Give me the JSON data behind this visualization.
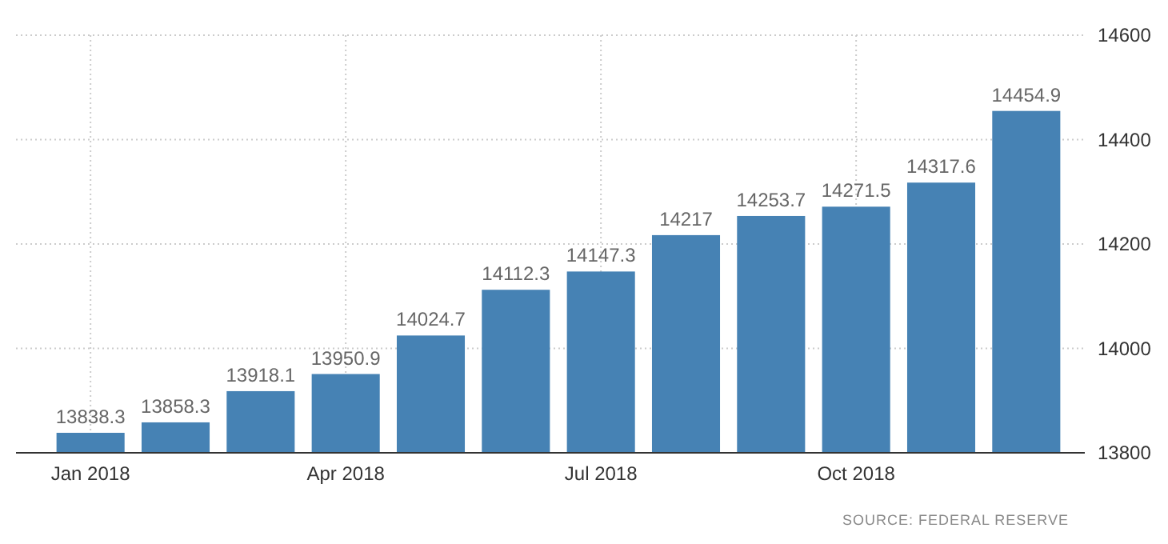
{
  "chart_data": {
    "type": "bar",
    "categories": [
      "Jan 2018",
      null,
      null,
      "Apr 2018",
      null,
      null,
      "Jul 2018",
      null,
      null,
      "Oct 2018",
      null,
      null
    ],
    "values": [
      13838.3,
      13858.3,
      13918.1,
      13950.9,
      14024.7,
      14112.3,
      14147.3,
      14217,
      14253.7,
      14271.5,
      14317.6,
      14454.9
    ],
    "color": "#4682b4",
    "ylim": [
      13800,
      14600
    ],
    "yticks": [
      13800,
      14000,
      14200,
      14400,
      14600
    ],
    "grid": true,
    "data_labels": true,
    "annotations": [
      "SOURCE: FEDERAL RESERVE"
    ]
  }
}
